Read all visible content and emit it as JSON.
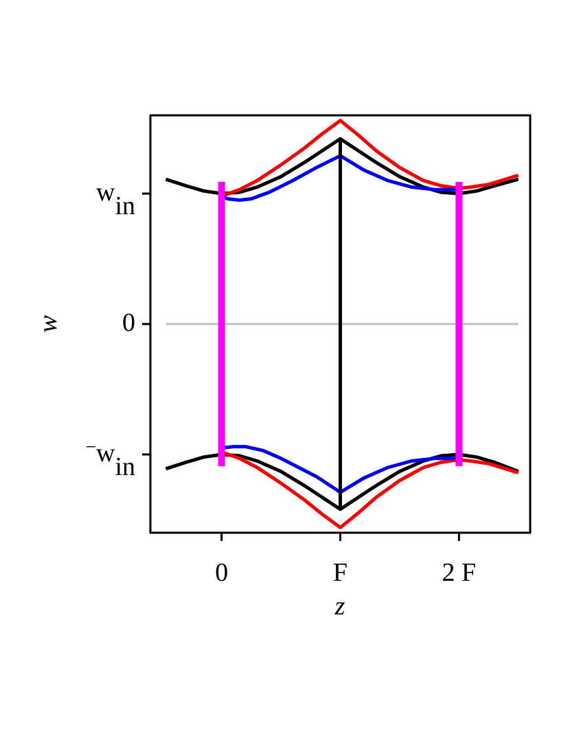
{
  "chart_data": {
    "type": "line",
    "xlabel": "z",
    "ylabel": "w",
    "xlim": [
      -0.6,
      2.6
    ],
    "ylim": [
      -1.6,
      1.6
    ],
    "grid": false,
    "legend": "none",
    "xticks": [
      {
        "value": 0,
        "label": "0"
      },
      {
        "value": 1,
        "label": "F"
      },
      {
        "value": 2,
        "label": "2 F"
      }
    ],
    "yticks": [
      {
        "value": 1,
        "label": "w",
        "sub": "in",
        "prefix": ""
      },
      {
        "value": 0,
        "label": "0",
        "sub": "",
        "prefix": ""
      },
      {
        "value": -1,
        "label": "w",
        "sub": "in",
        "prefix": "−"
      }
    ],
    "colors": {
      "black": "#000000",
      "red": "#ff0000",
      "blue": "#0000ff",
      "magenta": "#ff00ff",
      "zero_line": "#c0c0c0",
      "frame": "#000000"
    },
    "series": [
      {
        "color": "black",
        "width": 5,
        "x": [
          -0.47,
          -0.3,
          -0.15,
          0.0,
          0.15,
          0.3,
          0.5,
          0.7,
          0.85,
          1.0,
          1.15,
          1.3,
          1.5,
          1.7,
          1.85,
          2.0,
          2.15,
          2.3,
          2.5
        ],
        "y": [
          1.11,
          1.06,
          1.02,
          1.0,
          1.01,
          1.05,
          1.13,
          1.24,
          1.33,
          1.42,
          1.33,
          1.24,
          1.13,
          1.05,
          1.01,
          1.0,
          1.02,
          1.06,
          1.11
        ]
      },
      {
        "color": "black",
        "width": 5,
        "x": [
          -0.47,
          -0.3,
          -0.15,
          0.0,
          0.15,
          0.3,
          0.5,
          0.7,
          0.85,
          1.0,
          1.15,
          1.3,
          1.5,
          1.7,
          1.85,
          2.0,
          2.15,
          2.3,
          2.5
        ],
        "y": [
          -1.11,
          -1.06,
          -1.02,
          -1.0,
          -1.01,
          -1.05,
          -1.13,
          -1.24,
          -1.33,
          -1.42,
          -1.33,
          -1.24,
          -1.13,
          -1.05,
          -1.01,
          -1.0,
          -1.02,
          -1.06,
          -1.13
        ]
      },
      {
        "color": "red",
        "width": 5,
        "x": [
          0.0,
          0.15,
          0.3,
          0.5,
          0.7,
          0.85,
          1.0,
          1.15,
          1.3,
          1.5,
          1.7,
          1.85,
          2.0,
          2.1,
          2.25,
          2.5
        ],
        "y": [
          0.98,
          1.03,
          1.1,
          1.22,
          1.35,
          1.46,
          1.56,
          1.45,
          1.33,
          1.2,
          1.1,
          1.06,
          1.04,
          1.05,
          1.07,
          1.14
        ]
      },
      {
        "color": "red",
        "width": 5,
        "x": [
          0.0,
          0.15,
          0.3,
          0.5,
          0.7,
          0.85,
          1.0,
          1.15,
          1.3,
          1.5,
          1.7,
          1.85,
          2.0,
          2.1,
          2.25,
          2.5
        ],
        "y": [
          -0.98,
          -1.03,
          -1.1,
          -1.22,
          -1.35,
          -1.46,
          -1.56,
          -1.45,
          -1.33,
          -1.2,
          -1.1,
          -1.06,
          -1.04,
          -1.05,
          -1.07,
          -1.14
        ]
      },
      {
        "color": "blue",
        "width": 5,
        "x": [
          0.0,
          0.05,
          0.15,
          0.25,
          0.4,
          0.6,
          0.8,
          1.0
        ],
        "y": [
          0.98,
          0.96,
          0.95,
          0.96,
          1.01,
          1.1,
          1.2,
          1.29
        ]
      },
      {
        "color": "blue",
        "width": 5,
        "x": [
          0.0,
          0.1,
          0.2,
          0.35,
          0.5,
          0.65,
          0.8,
          1.0
        ],
        "y": [
          -0.95,
          -0.94,
          -0.94,
          -0.97,
          -1.03,
          -1.1,
          -1.17,
          -1.29
        ]
      },
      {
        "color": "blue",
        "width": 5,
        "x": [
          1.0,
          1.2,
          1.4,
          1.6,
          1.8,
          2.0
        ],
        "y": [
          1.29,
          1.18,
          1.1,
          1.05,
          1.03,
          1.03
        ]
      },
      {
        "color": "blue",
        "width": 5,
        "x": [
          1.0,
          1.2,
          1.4,
          1.6,
          1.8,
          2.0
        ],
        "y": [
          -1.29,
          -1.18,
          -1.1,
          -1.05,
          -1.03,
          -1.03
        ]
      },
      {
        "color": "black",
        "width": 5,
        "x": [
          1.0,
          1.0
        ],
        "y": [
          -1.42,
          1.42
        ]
      },
      {
        "color": "magenta",
        "width": 10,
        "x": [
          0.0,
          0.0
        ],
        "y": [
          -1.09,
          1.09
        ]
      },
      {
        "color": "magenta",
        "width": 10,
        "x": [
          2.0,
          2.0
        ],
        "y": [
          -1.09,
          1.09
        ]
      }
    ],
    "zero_line": {
      "x": [
        -0.47,
        2.5
      ],
      "y": [
        0,
        0
      ]
    }
  }
}
